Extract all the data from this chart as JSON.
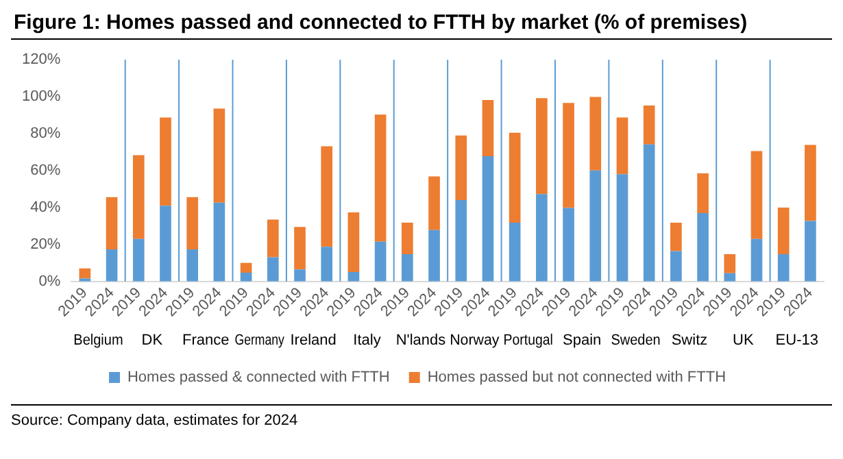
{
  "chart_data": {
    "type": "bar",
    "title": "Figure 1: Homes passed and connected to FTTH by market (% of premises)",
    "categories": [
      "2019",
      "2024",
      "2019",
      "2024",
      "2019",
      "2024",
      "2019",
      "2024",
      "2019",
      "2024",
      "2019",
      "2024",
      "2019",
      "2024",
      "2019",
      "2024",
      "2019",
      "2024",
      "2019",
      "2024",
      "2019",
      "2024",
      "2019",
      "2024",
      "2019",
      "2024",
      "2019",
      "2024"
    ],
    "stacked": true,
    "series": [
      {
        "name": "Homes passed & connected with FTTH",
        "color": "#5b9bd5",
        "values": [
          1.6,
          17.3,
          23,
          41,
          17.3,
          42.6,
          4.7,
          13.1,
          6.5,
          18.7,
          5.1,
          21.5,
          14.7,
          27.8,
          44,
          67.8,
          31.8,
          47.3,
          39.8,
          60.1,
          58,
          74.2,
          16.4,
          37,
          4.4,
          23,
          14.7,
          32.7
        ]
      },
      {
        "name": "Homes passed but not connected with FTTH",
        "color": "#ed7d31",
        "values": [
          5.4,
          28.3,
          45.3,
          47.7,
          28.3,
          51,
          5.3,
          20.4,
          23,
          54.5,
          32.3,
          68.8,
          17.1,
          29,
          35,
          30.4,
          48.7,
          51.9,
          56.8,
          39.8,
          30.7,
          21,
          15.4,
          21.5,
          10.3,
          47.6,
          25.3,
          41.2
        ]
      }
    ],
    "ylim": [
      0,
      120
    ],
    "yticks": [
      {
        "value": 0,
        "label": "0%"
      },
      {
        "value": 20,
        "label": "20%"
      },
      {
        "value": 40,
        "label": "40%"
      },
      {
        "value": 60,
        "label": "60%"
      },
      {
        "value": 80,
        "label": "80%"
      },
      {
        "value": 100,
        "label": "100%"
      },
      {
        "value": 120,
        "label": "120%"
      }
    ],
    "grid": false,
    "legend": "bottom",
    "annotations": [
      "Belgium",
      "DK",
      "France",
      "Germany",
      "Ireland",
      "Italy",
      "N'lands",
      "Norway",
      "Portugal",
      "Spain",
      "Sweden",
      "Switz",
      "UK",
      "EU-13",
      "Source: Company data, estimates for 2024"
    ]
  }
}
